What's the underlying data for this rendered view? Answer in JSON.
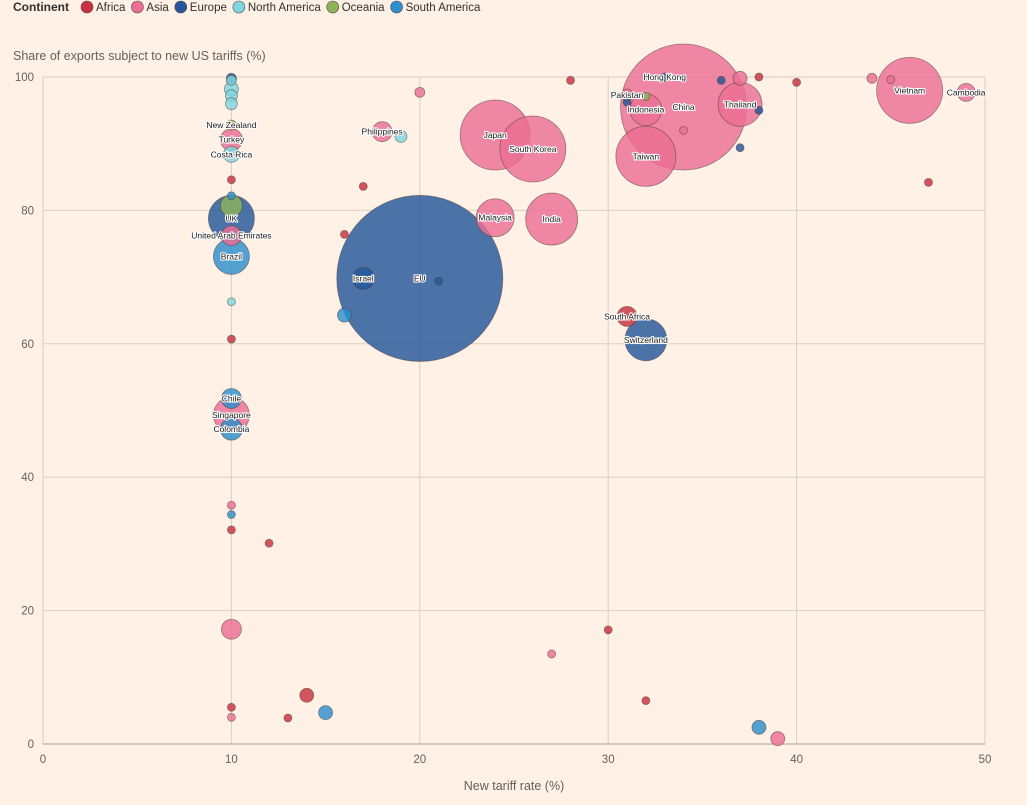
{
  "chart_data": {
    "type": "scatter",
    "legend": {
      "title": "Continent",
      "entries": [
        {
          "name": "Africa",
          "color": "#c8323f"
        },
        {
          "name": "Asia",
          "color": "#ec6e94"
        },
        {
          "name": "Europe",
          "color": "#24579a"
        },
        {
          "name": "North America",
          "color": "#7fd6de"
        },
        {
          "name": "Oceania",
          "color": "#8db35a"
        },
        {
          "name": "South America",
          "color": "#2d8fcc"
        }
      ],
      "placement": "top-left"
    },
    "ylabel": "Share of exports subject to new US tariffs (%)",
    "xlabel": "New tariff rate (%)",
    "xlim": [
      0,
      50
    ],
    "ylim": [
      0,
      100
    ],
    "xticks": [
      "0",
      "10",
      "20",
      "30",
      "40",
      "50"
    ],
    "yticks": [
      "0",
      "20",
      "40",
      "60",
      "80",
      "100"
    ],
    "grid": true,
    "points": [
      {
        "x": 20,
        "y": 69.8,
        "r": 83,
        "continent": "Europe",
        "label": "EU"
      },
      {
        "x": 34,
        "y": 95.5,
        "r": 63,
        "continent": "Asia",
        "label": "China"
      },
      {
        "x": 46,
        "y": 98,
        "r": 33,
        "continent": "Asia",
        "label": "Vietnam"
      },
      {
        "x": 24,
        "y": 91.3,
        "r": 35,
        "continent": "Asia",
        "label": "Japan"
      },
      {
        "x": 26,
        "y": 89.2,
        "r": 33,
        "continent": "Asia",
        "label": "South Korea"
      },
      {
        "x": 32,
        "y": 88.1,
        "r": 30,
        "continent": "Asia",
        "label": "Taiwan"
      },
      {
        "x": 27,
        "y": 78.7,
        "r": 26,
        "continent": "Asia",
        "label": "India"
      },
      {
        "x": 37,
        "y": 95.9,
        "r": 22,
        "continent": "Asia",
        "label": "Thailand"
      },
      {
        "x": 24,
        "y": 78.9,
        "r": 19,
        "continent": "Asia",
        "label": "Malaysia"
      },
      {
        "x": 32,
        "y": 60.6,
        "r": 21,
        "continent": "Europe",
        "label": "Switzerland"
      },
      {
        "x": 32,
        "y": 95.1,
        "r": 16,
        "continent": "Asia",
        "label": "Indonesia"
      },
      {
        "x": 10,
        "y": 78.8,
        "r": 23,
        "continent": "Europe",
        "label": "UK"
      },
      {
        "x": 10,
        "y": 73.1,
        "r": 18,
        "continent": "South America",
        "label": "Brazil"
      },
      {
        "x": 10,
        "y": 76.2,
        "r": 10,
        "continent": "Asia",
        "label": "United Arab Emirates"
      },
      {
        "x": 10,
        "y": 80.7,
        "r": 11,
        "continent": "Oceania",
        "label": ""
      },
      {
        "x": 17,
        "y": 69.8,
        "r": 11,
        "continent": "Europe",
        "label": "Israel"
      },
      {
        "x": 49,
        "y": 97.7,
        "r": 9,
        "continent": "Asia",
        "label": "Cambodia"
      },
      {
        "x": 31,
        "y": 64.1,
        "r": 10,
        "continent": "Africa",
        "label": "South Africa"
      },
      {
        "x": 18,
        "y": 91.8,
        "r": 10,
        "continent": "Asia",
        "label": "Philippines"
      },
      {
        "x": 10,
        "y": 90.6,
        "r": 11,
        "continent": "Asia",
        "label": "Turkey"
      },
      {
        "x": 10,
        "y": 88.4,
        "r": 8,
        "continent": "North America",
        "label": "Costa Rica"
      },
      {
        "x": 10,
        "y": 92.8,
        "r": 5,
        "continent": "Oceania",
        "label": "New Zealand"
      },
      {
        "x": 10,
        "y": 51.8,
        "r": 10,
        "continent": "South America",
        "label": "Chile"
      },
      {
        "x": 10,
        "y": 49.3,
        "r": 18,
        "continent": "Asia",
        "label": "Singapore"
      },
      {
        "x": 10,
        "y": 47.2,
        "r": 11,
        "continent": "South America",
        "label": "Colombia"
      },
      {
        "x": 31,
        "y": 97.3,
        "r": 6,
        "continent": "Asia",
        "label": "Pakistan"
      },
      {
        "x": 33,
        "y": 100,
        "r": 4,
        "continent": "Europe",
        "label": "Hong Kong"
      },
      {
        "x": 10,
        "y": 99.8,
        "r": 5,
        "continent": "Europe",
        "label": ""
      },
      {
        "x": 10,
        "y": 99.5,
        "r": 5,
        "continent": "North America",
        "label": ""
      },
      {
        "x": 10,
        "y": 98.2,
        "r": 7,
        "continent": "North America",
        "label": ""
      },
      {
        "x": 10,
        "y": 97.2,
        "r": 6,
        "continent": "North America",
        "label": ""
      },
      {
        "x": 10,
        "y": 96,
        "r": 6,
        "continent": "North America",
        "label": ""
      },
      {
        "x": 10,
        "y": 84.6,
        "r": 4,
        "continent": "Africa",
        "label": ""
      },
      {
        "x": 10,
        "y": 82.2,
        "r": 4,
        "continent": "South America",
        "label": ""
      },
      {
        "x": 10,
        "y": 66.3,
        "r": 4,
        "continent": "North America",
        "label": ""
      },
      {
        "x": 10,
        "y": 60.7,
        "r": 4,
        "continent": "Africa",
        "label": ""
      },
      {
        "x": 10,
        "y": 35.8,
        "r": 4,
        "continent": "Asia",
        "label": ""
      },
      {
        "x": 10,
        "y": 34.4,
        "r": 4,
        "continent": "South America",
        "label": ""
      },
      {
        "x": 10,
        "y": 32.1,
        "r": 4,
        "continent": "Africa",
        "label": ""
      },
      {
        "x": 10,
        "y": 17.2,
        "r": 10,
        "continent": "Asia",
        "label": ""
      },
      {
        "x": 10,
        "y": 5.5,
        "r": 4,
        "continent": "Africa",
        "label": ""
      },
      {
        "x": 10,
        "y": 4,
        "r": 4,
        "continent": "Asia",
        "label": ""
      },
      {
        "x": 12,
        "y": 30.1,
        "r": 4,
        "continent": "Africa",
        "label": ""
      },
      {
        "x": 13,
        "y": 3.9,
        "r": 4,
        "continent": "Africa",
        "label": ""
      },
      {
        "x": 14,
        "y": 7.3,
        "r": 7,
        "continent": "Africa",
        "label": ""
      },
      {
        "x": 15,
        "y": 4.7,
        "r": 7,
        "continent": "South America",
        "label": ""
      },
      {
        "x": 16,
        "y": 76.4,
        "r": 4,
        "continent": "Africa",
        "label": ""
      },
      {
        "x": 16,
        "y": 64.3,
        "r": 7,
        "continent": "South America",
        "label": ""
      },
      {
        "x": 17,
        "y": 83.6,
        "r": 4,
        "continent": "Africa",
        "label": ""
      },
      {
        "x": 19,
        "y": 91.1,
        "r": 6,
        "continent": "North America",
        "label": ""
      },
      {
        "x": 20,
        "y": 97.7,
        "r": 5,
        "continent": "Asia",
        "label": ""
      },
      {
        "x": 21,
        "y": 69.4,
        "r": 4,
        "continent": "Europe",
        "label": ""
      },
      {
        "x": 27,
        "y": 13.5,
        "r": 4,
        "continent": "Asia",
        "label": ""
      },
      {
        "x": 28,
        "y": 99.5,
        "r": 4,
        "continent": "Africa",
        "label": ""
      },
      {
        "x": 30,
        "y": 17.1,
        "r": 4,
        "continent": "Africa",
        "label": ""
      },
      {
        "x": 31,
        "y": 96.2,
        "r": 4,
        "continent": "Europe",
        "label": ""
      },
      {
        "x": 32,
        "y": 97.1,
        "r": 4,
        "continent": "Oceania",
        "label": ""
      },
      {
        "x": 32,
        "y": 6.5,
        "r": 4,
        "continent": "Africa",
        "label": ""
      },
      {
        "x": 34,
        "y": 92,
        "r": 4,
        "continent": "Asia",
        "label": ""
      },
      {
        "x": 36,
        "y": 99.5,
        "r": 4,
        "continent": "Europe",
        "label": ""
      },
      {
        "x": 37,
        "y": 99.8,
        "r": 7,
        "continent": "Asia",
        "label": ""
      },
      {
        "x": 37,
        "y": 89.4,
        "r": 4,
        "continent": "Europe",
        "label": ""
      },
      {
        "x": 38,
        "y": 100,
        "r": 4,
        "continent": "Africa",
        "label": ""
      },
      {
        "x": 38,
        "y": 95,
        "r": 4,
        "continent": "Europe",
        "label": ""
      },
      {
        "x": 38,
        "y": 2.5,
        "r": 7,
        "continent": "South America",
        "label": ""
      },
      {
        "x": 39,
        "y": 0.8,
        "r": 7,
        "continent": "Asia",
        "label": ""
      },
      {
        "x": 40,
        "y": 99.2,
        "r": 4,
        "continent": "Africa",
        "label": ""
      },
      {
        "x": 44,
        "y": 99.8,
        "r": 5,
        "continent": "Asia",
        "label": ""
      },
      {
        "x": 45,
        "y": 99.6,
        "r": 4,
        "continent": "Asia",
        "label": ""
      },
      {
        "x": 47,
        "y": 84.2,
        "r": 4,
        "continent": "Africa",
        "label": ""
      }
    ]
  }
}
